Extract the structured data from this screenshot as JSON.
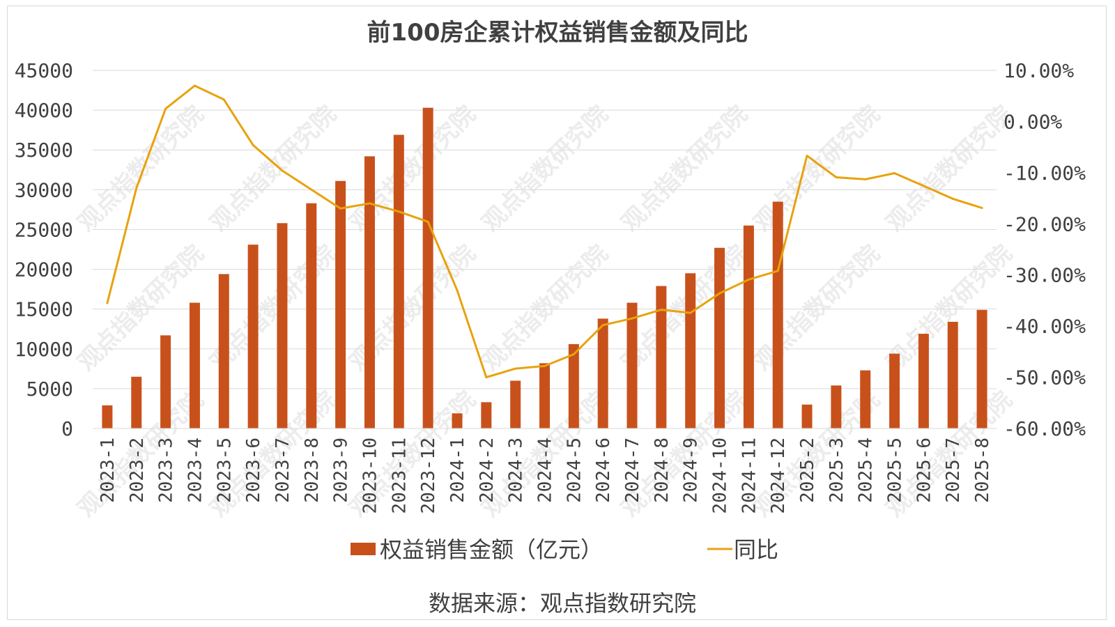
{
  "chart_data": {
    "type": "bar",
    "title": "前100房企累计权益销售金额及同比",
    "source_note": "数据来源：观点指数研究院",
    "watermark_text": "观点指数研究院",
    "categories": [
      "2023-1",
      "2023-2",
      "2023-3",
      "2023-4",
      "2023-5",
      "2023-6",
      "2023-7",
      "2023-8",
      "2023-9",
      "2023-10",
      "2023-11",
      "2023-12",
      "2024-1",
      "2024-2",
      "2024-3",
      "2024-4",
      "2024-5",
      "2024-6",
      "2024-7",
      "2024-8",
      "2024-9",
      "2024-10",
      "2024-11",
      "2024-12",
      "2025-2",
      "2025-3",
      "2025-4",
      "2025-5",
      "2025-6",
      "2025-7",
      "2025-8"
    ],
    "series": [
      {
        "name": "权益销售金额（亿元）",
        "type": "bar",
        "axis": "left",
        "color": "#c8511b",
        "values": [
          2900,
          6500,
          11700,
          15800,
          19400,
          23100,
          25800,
          28300,
          31100,
          34200,
          36900,
          40300,
          1900,
          3300,
          6000,
          8200,
          10600,
          13800,
          15800,
          17900,
          19500,
          22700,
          25500,
          28500,
          3000,
          5400,
          7300,
          9400,
          11900,
          13400,
          14900
        ]
      },
      {
        "name": "同比",
        "type": "line",
        "axis": "right",
        "color": "#e8a20c",
        "values": [
          -35.5,
          -13.0,
          2.5,
          7.0,
          4.3,
          -4.6,
          -9.6,
          -13.3,
          -17.0,
          -16.0,
          -17.6,
          -19.6,
          -33.0,
          -50.0,
          -48.3,
          -47.8,
          -45.5,
          -39.8,
          -38.5,
          -36.8,
          -37.4,
          -33.6,
          -30.9,
          -29.2,
          -6.7,
          -10.9,
          -11.3,
          -10.1,
          -12.6,
          -15.1,
          -16.9
        ]
      }
    ],
    "yaxis_left": {
      "min": 0,
      "max": 45000,
      "ticks": [
        "0",
        "5000",
        "10000",
        "15000",
        "20000",
        "25000",
        "30000",
        "35000",
        "40000",
        "45000"
      ]
    },
    "yaxis_right": {
      "min": -60,
      "max": 10,
      "ticks": [
        "-60.00%",
        "-50.00%",
        "-40.00%",
        "-30.00%",
        "-20.00%",
        "-10.00%",
        "0.00%",
        "10.00%"
      ]
    },
    "grid": true,
    "legend_position": "bottom"
  }
}
